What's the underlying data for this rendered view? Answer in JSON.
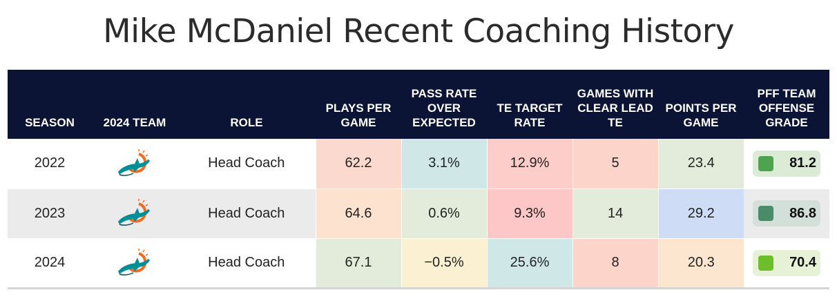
{
  "title": "Mike McDaniel Recent Coaching History",
  "columns": [
    "SEASON",
    "2024 TEAM",
    "ROLE",
    "PLAYS PER GAME",
    "PASS RATE OVER EXPECTED",
    "TE TARGET RATE",
    "GAMES WITH CLEAR LEAD TE",
    "POINTS PER GAME",
    "PFF TEAM OFFENSE GRADE"
  ],
  "team_logo_icon": "dolphins-logo-icon",
  "colors": {
    "header_bg": "#0c1436",
    "grade_high": "#4a8c6a",
    "grade_mid": "#4ea34e",
    "grade_low": "#6cbf2a"
  },
  "rows": [
    {
      "season": "2022",
      "role": "Head Coach",
      "plays": "62.2",
      "proe": "3.1%",
      "te_rate": "12.9%",
      "lead_te": "5",
      "ppg": "23.4",
      "grade": "81.2",
      "colors": {
        "plays": "#fcd9cf",
        "proe": "#cfe7e7",
        "te_rate": "#fdcdca",
        "lead_te": "#fdd4c9",
        "ppg": "#e3ecda",
        "grade_bg": "#dcebd6",
        "grade_sq": "#4ea34e"
      }
    },
    {
      "season": "2023",
      "role": "Head Coach",
      "plays": "64.6",
      "proe": "0.6%",
      "te_rate": "9.3%",
      "lead_te": "14",
      "ppg": "29.2",
      "grade": "86.8",
      "colors": {
        "plays": "#fde3cf",
        "proe": "#e3ecda",
        "te_rate": "#fdc7c7",
        "lead_te": "#e3ecda",
        "ppg": "#cfdcf5",
        "grade_bg": "#d3dfd9",
        "grade_sq": "#4a8c6a"
      }
    },
    {
      "season": "2024",
      "role": "Head Coach",
      "plays": "67.1",
      "proe": "−0.5%",
      "te_rate": "25.6%",
      "lead_te": "8",
      "ppg": "20.3",
      "grade": "70.4",
      "colors": {
        "plays": "#e3ecda",
        "proe": "#fbf1d2",
        "te_rate": "#cfe7e7",
        "lead_te": "#fdd4c9",
        "ppg": "#fde6cf",
        "grade_bg": "#e6f1d6",
        "grade_sq": "#6cbf2a"
      }
    }
  ],
  "chart_data": {
    "type": "table",
    "title": "Mike McDaniel Recent Coaching History",
    "columns": [
      "SEASON",
      "2024 TEAM",
      "ROLE",
      "PLAYS PER GAME",
      "PASS RATE OVER EXPECTED",
      "TE TARGET RATE",
      "GAMES WITH CLEAR LEAD TE",
      "POINTS PER GAME",
      "PFF TEAM OFFENSE GRADE"
    ],
    "rows": [
      [
        "2022",
        "Miami Dolphins",
        "Head Coach",
        62.2,
        "3.1%",
        "12.9%",
        5,
        23.4,
        81.2
      ],
      [
        "2023",
        "Miami Dolphins",
        "Head Coach",
        64.6,
        "0.6%",
        "9.3%",
        14,
        29.2,
        86.8
      ],
      [
        "2024",
        "Miami Dolphins",
        "Head Coach",
        67.1,
        "-0.5%",
        "25.6%",
        8,
        20.3,
        70.4
      ]
    ]
  }
}
